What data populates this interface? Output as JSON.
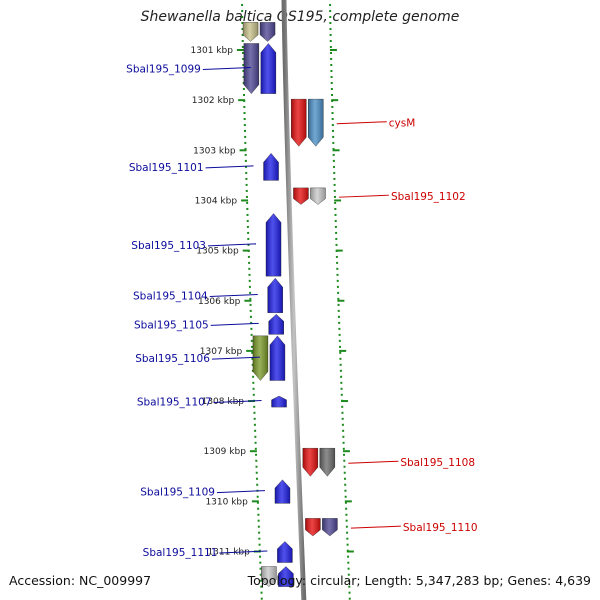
{
  "title": "Shewanella baltica OS195, complete genome",
  "accession": "Accession: NC_009997",
  "summary": "Topology: circular; Length: 5,347,283 bp; Genes: 4,639",
  "colors": {
    "blue": "#1e1ee6",
    "red": "#e60f0f",
    "steel": "#4a8fc6",
    "olive": "#7b9a2a",
    "slate": "#4e4793",
    "gray": "#6b6b6b",
    "lightgray": "#c8c8c8",
    "khaki": "#c8c08a",
    "tick": "#1d8a1d",
    "backbone": "#8c8c8c",
    "label_left": "#0c0c9c",
    "label_right": "#cc0000"
  },
  "scale": {
    "unit": "kbp",
    "ticks": [
      1301,
      1302,
      1303,
      1304,
      1305,
      1306,
      1307,
      1308,
      1309,
      1310,
      1311
    ]
  },
  "genes": [
    {
      "label": "",
      "side": "left",
      "lane": 0,
      "start": 1300.45,
      "end": 1300.83,
      "color": "khaki",
      "dir": "down"
    },
    {
      "label": "",
      "side": "left",
      "lane": 1,
      "start": 1300.45,
      "end": 1300.83,
      "color": "slate",
      "dir": "down"
    },
    {
      "label": "",
      "side": "left",
      "lane": 0,
      "start": 1300.87,
      "end": 1301.87,
      "color": "slate",
      "dir": "down"
    },
    {
      "label": "Sbal195_1099",
      "side": "left",
      "lane": 1,
      "start": 1300.87,
      "end": 1301.87,
      "color": "blue",
      "dir": "up"
    },
    {
      "label": "cysM",
      "side": "right",
      "lane": 0,
      "start": 1301.98,
      "end": 1302.92,
      "color": "red",
      "dir": "down"
    },
    {
      "label": "",
      "side": "right",
      "lane": 1,
      "start": 1301.98,
      "end": 1302.92,
      "color": "steel",
      "dir": "down"
    },
    {
      "label": "Sbal195_1101",
      "side": "left",
      "lane": 1,
      "start": 1303.06,
      "end": 1303.6,
      "color": "blue",
      "dir": "up"
    },
    {
      "label": "Sbal195_1102",
      "side": "right",
      "lane": 0,
      "start": 1303.75,
      "end": 1304.08,
      "color": "red",
      "dir": "down"
    },
    {
      "label": "",
      "side": "right",
      "lane": 1,
      "start": 1303.75,
      "end": 1304.08,
      "color": "lightgray",
      "dir": "down"
    },
    {
      "label": "Sbal195_1103",
      "side": "left",
      "lane": 1,
      "start": 1304.26,
      "end": 1305.51,
      "color": "blue",
      "dir": "up"
    },
    {
      "label": "Sbal195_1104",
      "side": "left",
      "lane": 1,
      "start": 1305.55,
      "end": 1306.24,
      "color": "blue",
      "dir": "up"
    },
    {
      "label": "Sbal195_1105",
      "side": "left",
      "lane": 1,
      "start": 1306.27,
      "end": 1306.67,
      "color": "blue",
      "dir": "up"
    },
    {
      "label": "",
      "side": "left",
      "lane": 0,
      "start": 1306.7,
      "end": 1307.59,
      "color": "olive",
      "dir": "down"
    },
    {
      "label": "Sbal195_1106",
      "side": "left",
      "lane": 1,
      "start": 1306.7,
      "end": 1307.59,
      "color": "blue",
      "dir": "up"
    },
    {
      "label": "Sbal195_1107",
      "side": "left",
      "lane": 1,
      "start": 1307.9,
      "end": 1308.12,
      "color": "blue",
      "dir": "up"
    },
    {
      "label": "Sbal195_1108",
      "side": "right",
      "lane": 0,
      "start": 1308.94,
      "end": 1309.5,
      "color": "red",
      "dir": "down"
    },
    {
      "label": "",
      "side": "right",
      "lane": 1,
      "start": 1308.94,
      "end": 1309.5,
      "color": "gray",
      "dir": "down"
    },
    {
      "label": "Sbal195_1109",
      "side": "left",
      "lane": 1,
      "start": 1309.57,
      "end": 1310.04,
      "color": "blue",
      "dir": "up"
    },
    {
      "label": "Sbal195_1110",
      "side": "right",
      "lane": 0,
      "start": 1310.34,
      "end": 1310.69,
      "color": "red",
      "dir": "down"
    },
    {
      "label": "",
      "side": "right",
      "lane": 1,
      "start": 1310.34,
      "end": 1310.69,
      "color": "slate",
      "dir": "down"
    },
    {
      "label": "Sbal195_1111",
      "side": "left",
      "lane": 1,
      "start": 1310.8,
      "end": 1311.22,
      "color": "blue",
      "dir": "up"
    },
    {
      "label": "",
      "side": "left",
      "lane": 0,
      "start": 1311.3,
      "end": 1311.7,
      "color": "lightgray",
      "dir": "down"
    },
    {
      "label": "",
      "side": "left",
      "lane": 1,
      "start": 1311.3,
      "end": 1311.7,
      "color": "blue",
      "dir": "up"
    }
  ]
}
